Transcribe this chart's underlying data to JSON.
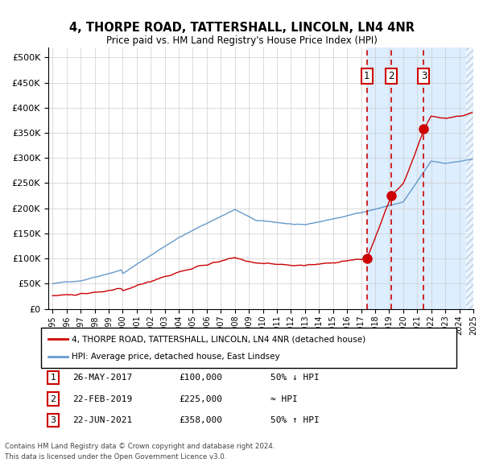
{
  "title": "4, THORPE ROAD, TATTERSHALL, LINCOLN, LN4 4NR",
  "subtitle": "Price paid vs. HM Land Registry's House Price Index (HPI)",
  "legend_line1": "4, THORPE ROAD, TATTERSHALL, LINCOLN, LN4 4NR (detached house)",
  "legend_line2": "HPI: Average price, detached house, East Lindsey",
  "footer1": "Contains HM Land Registry data © Crown copyright and database right 2024.",
  "footer2": "This data is licensed under the Open Government Licence v3.0.",
  "sale_events": [
    {
      "num": 1,
      "date": "26-MAY-2017",
      "price": 100000,
      "note": "50% ↓ HPI",
      "x_year": 2017.4
    },
    {
      "num": 2,
      "date": "22-FEB-2019",
      "price": 225000,
      "note": "≈ HPI",
      "x_year": 2019.15
    },
    {
      "num": 3,
      "date": "22-JUN-2021",
      "price": 358000,
      "note": "50% ↑ HPI",
      "x_year": 2021.47
    }
  ],
  "hpi_color": "#6699cc",
  "sale_color": "#cc0000",
  "shade_color": "#ddeeff",
  "ylim": [
    0,
    520000
  ],
  "xlim_start": 1995,
  "xlim_end": 2025
}
